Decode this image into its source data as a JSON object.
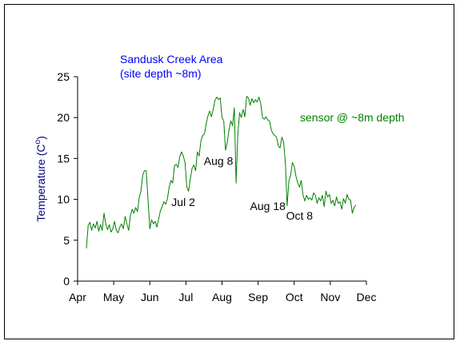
{
  "chart_data": {
    "type": "line",
    "title": "Sandusk Creek Area",
    "subtitle": "(site depth ~8m)",
    "xlabel": "",
    "ylabel": "Temperature (C",
    "ylabel_superscript": "o",
    "ylabel_close": ")",
    "xlim": [
      0,
      8.2
    ],
    "ylim": [
      0,
      25
    ],
    "yticks": [
      0,
      5,
      10,
      15,
      20,
      25
    ],
    "x_tick_labels": [
      "Apr",
      "May",
      "Jun",
      "Jul",
      "Aug",
      "Sep",
      "Oct",
      "Nov",
      "Dec"
    ],
    "grid": false,
    "legend": "none",
    "colors": {
      "series": "#008000",
      "title": "#0000ff",
      "ylabel": "#000080",
      "axis": "#000000"
    },
    "series_label": "sensor @ ~8m depth",
    "annotations": [
      {
        "text": "Jul 2",
        "x": 3.0,
        "y": 9.2
      },
      {
        "text": "Aug 8",
        "x": 4.0,
        "y": 14.2
      },
      {
        "text": "Aug 18",
        "x": 5.4,
        "y": 8.7
      },
      {
        "text": "Oct 8",
        "x": 6.3,
        "y": 7.5
      }
    ],
    "series": [
      {
        "values_xy": [
          [
            0.25,
            4.0
          ],
          [
            0.3,
            6.8
          ],
          [
            0.35,
            7.2
          ],
          [
            0.4,
            6.2
          ],
          [
            0.45,
            7.0
          ],
          [
            0.5,
            6.5
          ],
          [
            0.55,
            7.3
          ],
          [
            0.6,
            6.1
          ],
          [
            0.65,
            6.9
          ],
          [
            0.7,
            6.2
          ],
          [
            0.75,
            8.3
          ],
          [
            0.8,
            7.0
          ],
          [
            0.85,
            6.3
          ],
          [
            0.9,
            6.9
          ],
          [
            0.95,
            6.0
          ],
          [
            1.0,
            6.4
          ],
          [
            1.05,
            7.3
          ],
          [
            1.1,
            6.2
          ],
          [
            1.15,
            5.9
          ],
          [
            1.2,
            6.6
          ],
          [
            1.25,
            7.0
          ],
          [
            1.3,
            6.4
          ],
          [
            1.35,
            7.9
          ],
          [
            1.4,
            7.0
          ],
          [
            1.45,
            6.2
          ],
          [
            1.5,
            8.0
          ],
          [
            1.55,
            8.8
          ],
          [
            1.6,
            8.3
          ],
          [
            1.65,
            9.0
          ],
          [
            1.7,
            8.5
          ],
          [
            1.75,
            10.2
          ],
          [
            1.8,
            11.0
          ],
          [
            1.85,
            13.0
          ],
          [
            1.9,
            13.5
          ],
          [
            1.95,
            13.5
          ],
          [
            2.0,
            10.0
          ],
          [
            2.05,
            6.4
          ],
          [
            2.1,
            7.5
          ],
          [
            2.15,
            7.0
          ],
          [
            2.2,
            7.3
          ],
          [
            2.25,
            6.6
          ],
          [
            2.3,
            7.6
          ],
          [
            2.35,
            8.6
          ],
          [
            2.4,
            9.1
          ],
          [
            2.45,
            9.7
          ],
          [
            2.5,
            9.4
          ],
          [
            2.55,
            10.1
          ],
          [
            2.6,
            11.5
          ],
          [
            2.65,
            12.3
          ],
          [
            2.7,
            12.0
          ],
          [
            2.75,
            14.1
          ],
          [
            2.8,
            14.3
          ],
          [
            2.85,
            13.9
          ],
          [
            2.9,
            15.2
          ],
          [
            2.95,
            15.8
          ],
          [
            3.0,
            15.3
          ],
          [
            3.05,
            14.5
          ],
          [
            3.1,
            11.5
          ],
          [
            3.15,
            11.0
          ],
          [
            3.2,
            12.5
          ],
          [
            3.25,
            13.8
          ],
          [
            3.3,
            14.2
          ],
          [
            3.35,
            13.5
          ],
          [
            3.4,
            15.8
          ],
          [
            3.45,
            15.3
          ],
          [
            3.5,
            17.1
          ],
          [
            3.55,
            17.8
          ],
          [
            3.6,
            18.0
          ],
          [
            3.65,
            19.2
          ],
          [
            3.7,
            20.2
          ],
          [
            3.75,
            20.8
          ],
          [
            3.8,
            20.1
          ],
          [
            3.85,
            21.0
          ],
          [
            3.9,
            22.1
          ],
          [
            3.95,
            22.5
          ],
          [
            4.0,
            22.2
          ],
          [
            4.05,
            22.4
          ],
          [
            4.1,
            20.0
          ],
          [
            4.15,
            19.6
          ],
          [
            4.2,
            16.0
          ],
          [
            4.25,
            17.0
          ],
          [
            4.3,
            18.5
          ],
          [
            4.35,
            19.6
          ],
          [
            4.4,
            19.0
          ],
          [
            4.45,
            21.2
          ],
          [
            4.5,
            12.0
          ],
          [
            4.55,
            18.0
          ],
          [
            4.6,
            20.6
          ],
          [
            4.65,
            20.0
          ],
          [
            4.7,
            21.0
          ],
          [
            4.75,
            20.1
          ],
          [
            4.8,
            22.6
          ],
          [
            4.85,
            22.4
          ],
          [
            4.9,
            21.5
          ],
          [
            4.95,
            22.3
          ],
          [
            5.0,
            21.8
          ],
          [
            5.05,
            22.2
          ],
          [
            5.1,
            21.9
          ],
          [
            5.15,
            22.5
          ],
          [
            5.2,
            21.7
          ],
          [
            5.25,
            20.0
          ],
          [
            5.3,
            19.8
          ],
          [
            5.35,
            20.1
          ],
          [
            5.4,
            19.7
          ],
          [
            5.45,
            19.6
          ],
          [
            5.5,
            18.5
          ],
          [
            5.55,
            18.0
          ],
          [
            5.6,
            17.8
          ],
          [
            5.65,
            17.6
          ],
          [
            5.7,
            16.5
          ],
          [
            5.75,
            16.3
          ],
          [
            5.8,
            17.6
          ],
          [
            5.85,
            17.0
          ],
          [
            5.9,
            14.5
          ],
          [
            5.95,
            9.2
          ],
          [
            6.0,
            12.2
          ],
          [
            6.05,
            13.0
          ],
          [
            6.1,
            14.5
          ],
          [
            6.15,
            14.0
          ],
          [
            6.2,
            12.8
          ],
          [
            6.25,
            12.0
          ],
          [
            6.3,
            11.5
          ],
          [
            6.35,
            12.3
          ],
          [
            6.4,
            10.5
          ],
          [
            6.45,
            9.8
          ],
          [
            6.5,
            10.5
          ],
          [
            6.55,
            10.0
          ],
          [
            6.6,
            10.2
          ],
          [
            6.65,
            9.9
          ],
          [
            6.7,
            10.8
          ],
          [
            6.75,
            10.5
          ],
          [
            6.8,
            9.5
          ],
          [
            6.85,
            10.2
          ],
          [
            6.9,
            9.8
          ],
          [
            6.95,
            10.5
          ],
          [
            7.0,
            9.1
          ],
          [
            7.05,
            11.0
          ],
          [
            7.1,
            10.3
          ],
          [
            7.15,
            10.6
          ],
          [
            7.2,
            9.5
          ],
          [
            7.25,
            9.9
          ],
          [
            7.3,
            9.2
          ],
          [
            7.35,
            10.3
          ],
          [
            7.4,
            9.5
          ],
          [
            7.45,
            9.7
          ],
          [
            7.5,
            8.8
          ],
          [
            7.55,
            10.1
          ],
          [
            7.6,
            9.5
          ],
          [
            7.65,
            10.6
          ],
          [
            7.7,
            10.0
          ],
          [
            7.75,
            9.9
          ],
          [
            7.8,
            8.3
          ],
          [
            7.85,
            9.0
          ],
          [
            7.9,
            9.3
          ]
        ]
      }
    ]
  }
}
